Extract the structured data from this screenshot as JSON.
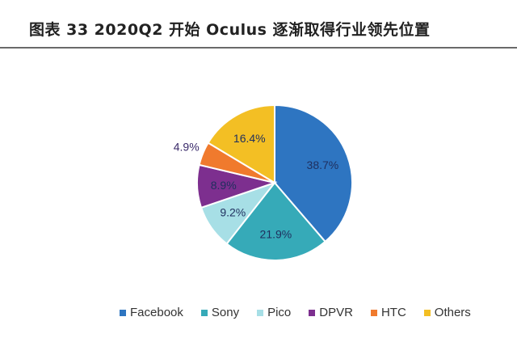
{
  "header": {
    "title": "图表 33 2020Q2 开始 Oculus 逐渐取得行业领先位置"
  },
  "chart_data": {
    "type": "pie",
    "title": "",
    "start_angle_deg": 0,
    "direction": "clockwise",
    "slices": [
      {
        "name": "Facebook",
        "value": 38.7,
        "label": "38.7%",
        "color": "#2e75c1"
      },
      {
        "name": "Sony",
        "value": 21.9,
        "label": "21.9%",
        "color": "#36aab8"
      },
      {
        "name": "Pico",
        "value": 9.2,
        "label": "9.2%",
        "color": "#a7dfe6"
      },
      {
        "name": "DPVR",
        "value": 8.9,
        "label": "8.9%",
        "color": "#7d2f8f"
      },
      {
        "name": "HTC",
        "value": 4.9,
        "label": "4.9%",
        "color": "#f07a2d"
      },
      {
        "name": "Others",
        "value": 16.4,
        "label": "16.4%",
        "color": "#f3bf24"
      }
    ],
    "legend_position": "bottom"
  }
}
